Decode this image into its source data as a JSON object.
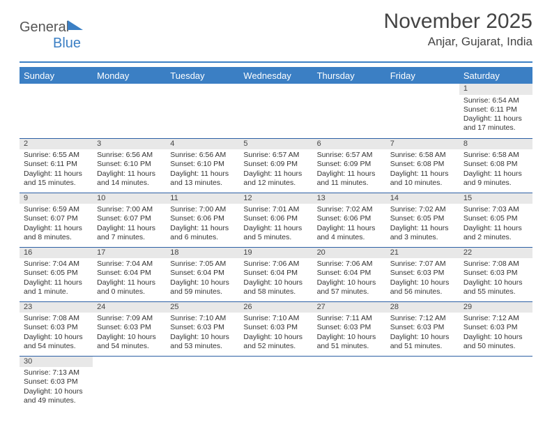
{
  "logo": {
    "text1": "General",
    "text2": "Blue"
  },
  "title": "November 2025",
  "subtitle": "Anjar, Gujarat, India",
  "colors": {
    "header_bg": "#3b7fc4",
    "header_text": "#ffffff",
    "daynum_bg": "#e8e8e8",
    "border": "#2b5fa4",
    "title_color": "#444444",
    "body_text": "#333333"
  },
  "weekdays": [
    "Sunday",
    "Monday",
    "Tuesday",
    "Wednesday",
    "Thursday",
    "Friday",
    "Saturday"
  ],
  "weeks": [
    [
      null,
      null,
      null,
      null,
      null,
      null,
      {
        "n": "1",
        "sr": "Sunrise: 6:54 AM",
        "ss": "Sunset: 6:11 PM",
        "dl": "Daylight: 11 hours and 17 minutes."
      }
    ],
    [
      {
        "n": "2",
        "sr": "Sunrise: 6:55 AM",
        "ss": "Sunset: 6:11 PM",
        "dl": "Daylight: 11 hours and 15 minutes."
      },
      {
        "n": "3",
        "sr": "Sunrise: 6:56 AM",
        "ss": "Sunset: 6:10 PM",
        "dl": "Daylight: 11 hours and 14 minutes."
      },
      {
        "n": "4",
        "sr": "Sunrise: 6:56 AM",
        "ss": "Sunset: 6:10 PM",
        "dl": "Daylight: 11 hours and 13 minutes."
      },
      {
        "n": "5",
        "sr": "Sunrise: 6:57 AM",
        "ss": "Sunset: 6:09 PM",
        "dl": "Daylight: 11 hours and 12 minutes."
      },
      {
        "n": "6",
        "sr": "Sunrise: 6:57 AM",
        "ss": "Sunset: 6:09 PM",
        "dl": "Daylight: 11 hours and 11 minutes."
      },
      {
        "n": "7",
        "sr": "Sunrise: 6:58 AM",
        "ss": "Sunset: 6:08 PM",
        "dl": "Daylight: 11 hours and 10 minutes."
      },
      {
        "n": "8",
        "sr": "Sunrise: 6:58 AM",
        "ss": "Sunset: 6:08 PM",
        "dl": "Daylight: 11 hours and 9 minutes."
      }
    ],
    [
      {
        "n": "9",
        "sr": "Sunrise: 6:59 AM",
        "ss": "Sunset: 6:07 PM",
        "dl": "Daylight: 11 hours and 8 minutes."
      },
      {
        "n": "10",
        "sr": "Sunrise: 7:00 AM",
        "ss": "Sunset: 6:07 PM",
        "dl": "Daylight: 11 hours and 7 minutes."
      },
      {
        "n": "11",
        "sr": "Sunrise: 7:00 AM",
        "ss": "Sunset: 6:06 PM",
        "dl": "Daylight: 11 hours and 6 minutes."
      },
      {
        "n": "12",
        "sr": "Sunrise: 7:01 AM",
        "ss": "Sunset: 6:06 PM",
        "dl": "Daylight: 11 hours and 5 minutes."
      },
      {
        "n": "13",
        "sr": "Sunrise: 7:02 AM",
        "ss": "Sunset: 6:06 PM",
        "dl": "Daylight: 11 hours and 4 minutes."
      },
      {
        "n": "14",
        "sr": "Sunrise: 7:02 AM",
        "ss": "Sunset: 6:05 PM",
        "dl": "Daylight: 11 hours and 3 minutes."
      },
      {
        "n": "15",
        "sr": "Sunrise: 7:03 AM",
        "ss": "Sunset: 6:05 PM",
        "dl": "Daylight: 11 hours and 2 minutes."
      }
    ],
    [
      {
        "n": "16",
        "sr": "Sunrise: 7:04 AM",
        "ss": "Sunset: 6:05 PM",
        "dl": "Daylight: 11 hours and 1 minute."
      },
      {
        "n": "17",
        "sr": "Sunrise: 7:04 AM",
        "ss": "Sunset: 6:04 PM",
        "dl": "Daylight: 11 hours and 0 minutes."
      },
      {
        "n": "18",
        "sr": "Sunrise: 7:05 AM",
        "ss": "Sunset: 6:04 PM",
        "dl": "Daylight: 10 hours and 59 minutes."
      },
      {
        "n": "19",
        "sr": "Sunrise: 7:06 AM",
        "ss": "Sunset: 6:04 PM",
        "dl": "Daylight: 10 hours and 58 minutes."
      },
      {
        "n": "20",
        "sr": "Sunrise: 7:06 AM",
        "ss": "Sunset: 6:04 PM",
        "dl": "Daylight: 10 hours and 57 minutes."
      },
      {
        "n": "21",
        "sr": "Sunrise: 7:07 AM",
        "ss": "Sunset: 6:03 PM",
        "dl": "Daylight: 10 hours and 56 minutes."
      },
      {
        "n": "22",
        "sr": "Sunrise: 7:08 AM",
        "ss": "Sunset: 6:03 PM",
        "dl": "Daylight: 10 hours and 55 minutes."
      }
    ],
    [
      {
        "n": "23",
        "sr": "Sunrise: 7:08 AM",
        "ss": "Sunset: 6:03 PM",
        "dl": "Daylight: 10 hours and 54 minutes."
      },
      {
        "n": "24",
        "sr": "Sunrise: 7:09 AM",
        "ss": "Sunset: 6:03 PM",
        "dl": "Daylight: 10 hours and 54 minutes."
      },
      {
        "n": "25",
        "sr": "Sunrise: 7:10 AM",
        "ss": "Sunset: 6:03 PM",
        "dl": "Daylight: 10 hours and 53 minutes."
      },
      {
        "n": "26",
        "sr": "Sunrise: 7:10 AM",
        "ss": "Sunset: 6:03 PM",
        "dl": "Daylight: 10 hours and 52 minutes."
      },
      {
        "n": "27",
        "sr": "Sunrise: 7:11 AM",
        "ss": "Sunset: 6:03 PM",
        "dl": "Daylight: 10 hours and 51 minutes."
      },
      {
        "n": "28",
        "sr": "Sunrise: 7:12 AM",
        "ss": "Sunset: 6:03 PM",
        "dl": "Daylight: 10 hours and 51 minutes."
      },
      {
        "n": "29",
        "sr": "Sunrise: 7:12 AM",
        "ss": "Sunset: 6:03 PM",
        "dl": "Daylight: 10 hours and 50 minutes."
      }
    ],
    [
      {
        "n": "30",
        "sr": "Sunrise: 7:13 AM",
        "ss": "Sunset: 6:03 PM",
        "dl": "Daylight: 10 hours and 49 minutes."
      },
      null,
      null,
      null,
      null,
      null,
      null
    ]
  ]
}
